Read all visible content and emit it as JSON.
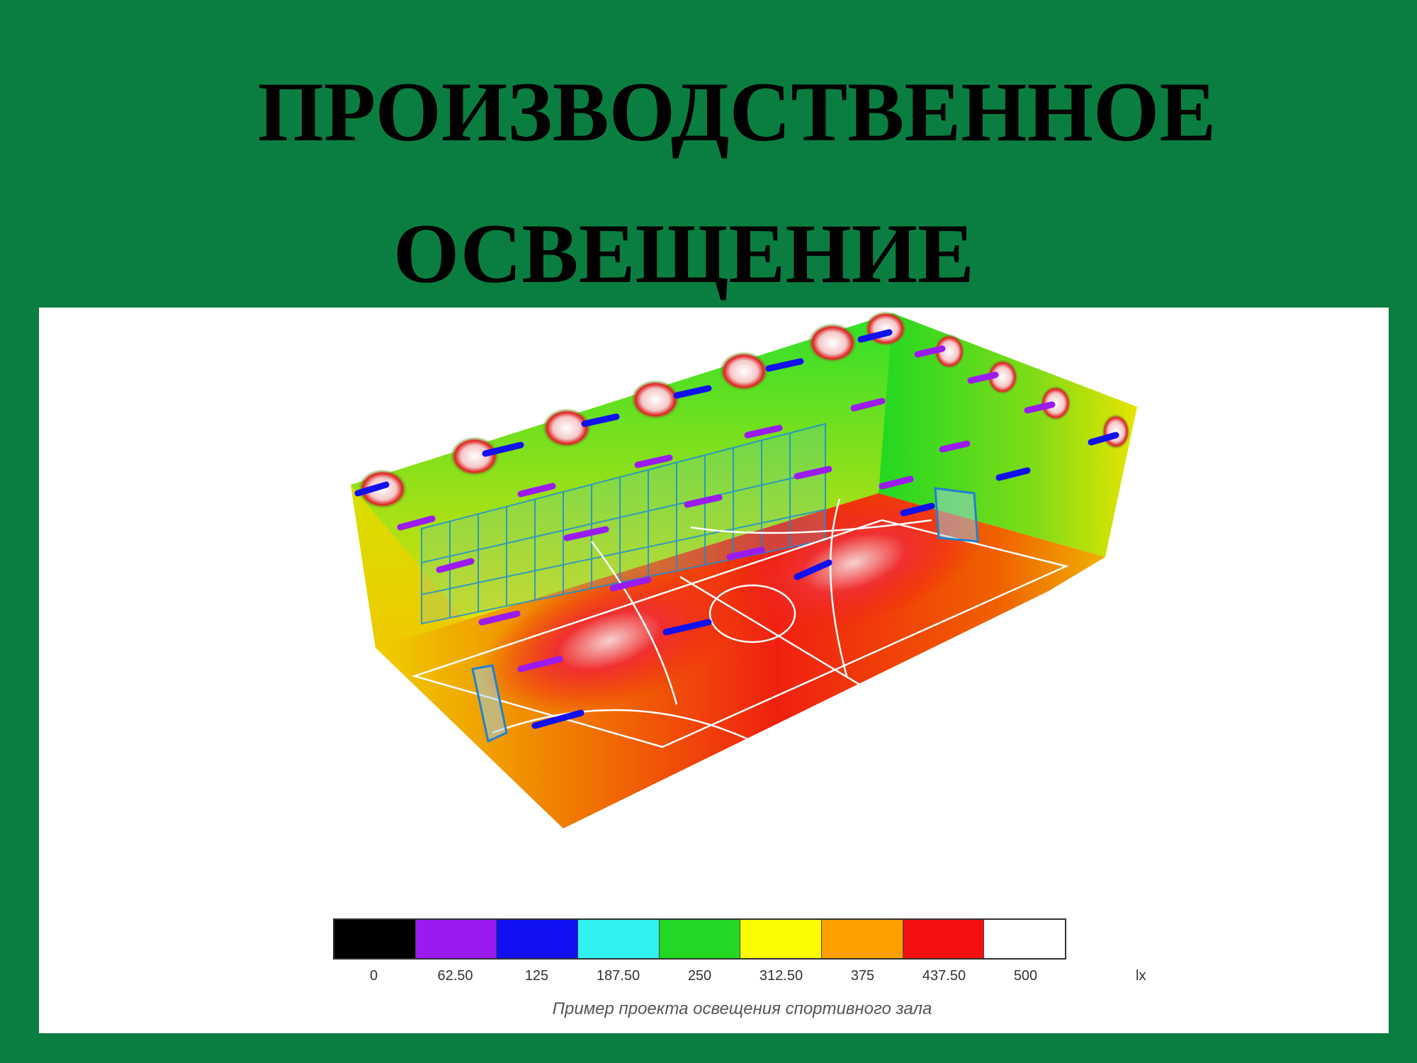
{
  "title": {
    "line1": "ПРОИЗВОДСТВЕННОЕ",
    "line2": "ОСВЕЩЕНИЕ"
  },
  "legend": {
    "colors": [
      "#000000",
      "#9a1af0",
      "#1010f0",
      "#30f0f0",
      "#22d822",
      "#fcfc00",
      "#fca000",
      "#f41010",
      "#ffffff"
    ],
    "labels": [
      "0",
      "62.50",
      "125",
      "187.50",
      "250",
      "312.50",
      "375",
      "437.50",
      "500"
    ],
    "unit": "lx"
  },
  "caption": "Пример проекта освещения спортивного зала",
  "colors": {
    "background": "#0a7e41",
    "panel": "#ffffff"
  }
}
